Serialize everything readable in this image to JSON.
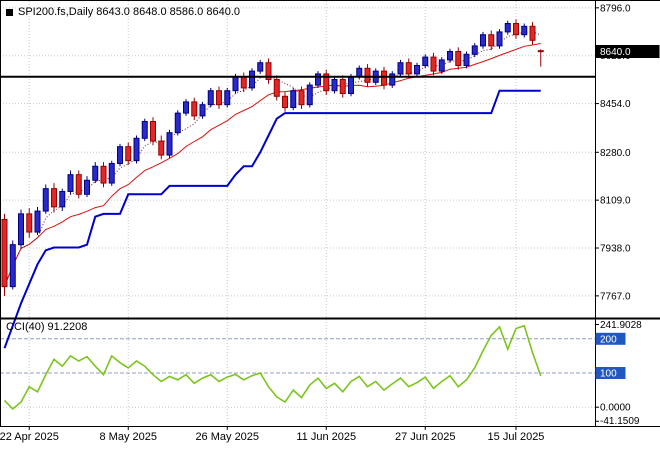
{
  "symbol_bar": {
    "marker_icon": "black-square",
    "text": "SPI200.fs,Daily 8643.0 8648.0 8586.0 8640.0"
  },
  "colors": {
    "bull_fill": "#2929cc",
    "bull_stroke": "#000080",
    "bear_fill": "#e02828",
    "bear_stroke": "#990000",
    "ma_fast": "#802020",
    "ma_slow": "#dd1111",
    "step_line": "#0000cd",
    "hline": "#000000",
    "cci_line": "#7cc41e",
    "grid": "#c9c9c9",
    "level_badge": "#2058c0",
    "price_badge_bg": "#000000",
    "price_badge_text": "#ffffff"
  },
  "chart_data": [
    {
      "type": "candlestick",
      "title": "SPI200.fs,Daily",
      "ohlc_display": {
        "open": "8643.0",
        "high": "8648.0",
        "low": "8586.0",
        "close": "8640.0"
      },
      "x_tick_labels": [
        "22 Apr 2025",
        "8 May 2025",
        "26 May 2025",
        "11 Jun 2025",
        "27 Jun 2025",
        "15 Jul 2025"
      ],
      "x_tick_indices": [
        3,
        15,
        27,
        39,
        51,
        62
      ],
      "y_ticks": [
        8796,
        8625,
        8454,
        8280,
        8109,
        7938,
        7767
      ],
      "y_tick_labels": [
        "8796.0",
        "8625.0",
        "8454.0",
        "8280.0",
        "8109.0",
        "7938.0",
        "7767.0"
      ],
      "ylim": [
        7688,
        8824
      ],
      "current_price": {
        "value": 8640,
        "label": "8640.0"
      },
      "candles": [
        [
          8040,
          8060,
          7767,
          7800
        ],
        [
          7800,
          7965,
          7790,
          7950
        ],
        [
          7950,
          8075,
          7935,
          8060
        ],
        [
          8060,
          8080,
          7975,
          7995
        ],
        [
          7995,
          8085,
          7985,
          8070
        ],
        [
          8070,
          8165,
          8060,
          8150
        ],
        [
          8150,
          8170,
          8065,
          8085
        ],
        [
          8085,
          8150,
          8070,
          8140
        ],
        [
          8140,
          8215,
          8130,
          8200
        ],
        [
          8200,
          8215,
          8115,
          8130
        ],
        [
          8130,
          8195,
          8120,
          8180
        ],
        [
          8180,
          8245,
          8170,
          8230
        ],
        [
          8230,
          8245,
          8155,
          8170
        ],
        [
          8170,
          8250,
          8160,
          8240
        ],
        [
          8240,
          8310,
          8230,
          8300
        ],
        [
          8300,
          8315,
          8235,
          8250
        ],
        [
          8250,
          8340,
          8240,
          8330
        ],
        [
          8330,
          8400,
          8320,
          8390
        ],
        [
          8390,
          8405,
          8305,
          8320
        ],
        [
          8320,
          8340,
          8255,
          8270
        ],
        [
          8270,
          8360,
          8260,
          8350
        ],
        [
          8350,
          8430,
          8340,
          8420
        ],
        [
          8420,
          8470,
          8410,
          8460
        ],
        [
          8460,
          8475,
          8395,
          8410
        ],
        [
          8410,
          8460,
          8400,
          8450
        ],
        [
          8450,
          8510,
          8440,
          8500
        ],
        [
          8500,
          8515,
          8435,
          8450
        ],
        [
          8450,
          8510,
          8440,
          8500
        ],
        [
          8500,
          8560,
          8490,
          8550
        ],
        [
          8550,
          8565,
          8495,
          8510
        ],
        [
          8510,
          8580,
          8500,
          8570
        ],
        [
          8570,
          8610,
          8560,
          8600
        ],
        [
          8600,
          8615,
          8525,
          8540
        ],
        [
          8540,
          8555,
          8465,
          8480
        ],
        [
          8480,
          8495,
          8425,
          8440
        ],
        [
          8440,
          8510,
          8430,
          8500
        ],
        [
          8500,
          8515,
          8435,
          8450
        ],
        [
          8450,
          8530,
          8440,
          8520
        ],
        [
          8520,
          8570,
          8510,
          8560
        ],
        [
          8560,
          8575,
          8485,
          8500
        ],
        [
          8500,
          8550,
          8490,
          8540
        ],
        [
          8540,
          8555,
          8475,
          8490
        ],
        [
          8490,
          8560,
          8480,
          8550
        ],
        [
          8550,
          8590,
          8540,
          8580
        ],
        [
          8580,
          8595,
          8515,
          8530
        ],
        [
          8530,
          8580,
          8520,
          8570
        ],
        [
          8570,
          8585,
          8505,
          8520
        ],
        [
          8520,
          8570,
          8510,
          8560
        ],
        [
          8560,
          8610,
          8550,
          8600
        ],
        [
          8600,
          8615,
          8545,
          8560
        ],
        [
          8560,
          8600,
          8550,
          8590
        ],
        [
          8590,
          8630,
          8580,
          8620
        ],
        [
          8620,
          8635,
          8555,
          8570
        ],
        [
          8570,
          8620,
          8560,
          8610
        ],
        [
          8610,
          8650,
          8600,
          8640
        ],
        [
          8640,
          8655,
          8575,
          8590
        ],
        [
          8590,
          8640,
          8580,
          8630
        ],
        [
          8630,
          8670,
          8620,
          8660
        ],
        [
          8660,
          8710,
          8650,
          8700
        ],
        [
          8700,
          8715,
          8645,
          8660
        ],
        [
          8660,
          8720,
          8650,
          8710
        ],
        [
          8710,
          8750,
          8700,
          8740
        ],
        [
          8740,
          8755,
          8685,
          8700
        ],
        [
          8700,
          8740,
          8690,
          8730
        ],
        [
          8730,
          8745,
          8665,
          8680
        ],
        [
          8643,
          8648,
          8586,
          8640
        ]
      ],
      "overlays": {
        "ma_fast": {
          "type": "sma",
          "period": 5,
          "style": "dotted"
        },
        "ma_slow": {
          "type": "sma",
          "period": 13,
          "style": "solid"
        },
        "step_line": {
          "values": [
            7580,
            7660,
            7740,
            7810,
            7880,
            7930,
            7940,
            7940,
            7940,
            7940,
            7950,
            8050,
            8060,
            8060,
            8060,
            8130,
            8130,
            8130,
            8130,
            8130,
            8160,
            8160,
            8160,
            8160,
            8160,
            8160,
            8160,
            8160,
            8200,
            8230,
            8230,
            8280,
            8340,
            8400,
            8420,
            8420,
            8420,
            8420,
            8420,
            8420,
            8420,
            8420,
            8420,
            8420,
            8420,
            8420,
            8420,
            8420,
            8420,
            8420,
            8420,
            8420,
            8420,
            8420,
            8420,
            8420,
            8420,
            8420,
            8420,
            8420,
            8500,
            8500,
            8500,
            8500,
            8500,
            8500
          ]
        },
        "hline": {
          "value": 8550
        }
      }
    },
    {
      "type": "line",
      "title": "CCI(40)",
      "current_value": "91.2208",
      "label_text": "CCI(40) 91.2208",
      "ylim": [
        -55,
        255
      ],
      "levels": [
        200,
        100,
        0
      ],
      "y_axis": [
        {
          "value": 241.9028,
          "label": "241.9028",
          "badge": false
        },
        {
          "value": 200,
          "label": "200",
          "badge": true
        },
        {
          "value": 100,
          "label": "100",
          "badge": true
        },
        {
          "value": 0,
          "label": "0.0000",
          "badge": false
        },
        {
          "value": -41.1509,
          "label": "-41.1509",
          "badge": false
        }
      ],
      "values": [
        20,
        -5,
        15,
        60,
        45,
        95,
        140,
        120,
        150,
        135,
        148,
        120,
        95,
        150,
        130,
        115,
        135,
        120,
        95,
        75,
        90,
        80,
        95,
        70,
        85,
        95,
        75,
        88,
        96,
        80,
        92,
        100,
        60,
        30,
        15,
        50,
        28,
        65,
        85,
        55,
        70,
        45,
        75,
        90,
        60,
        75,
        50,
        68,
        85,
        60,
        72,
        88,
        55,
        75,
        92,
        60,
        80,
        115,
        165,
        210,
        235,
        170,
        230,
        238,
        160,
        91.2208
      ]
    }
  ]
}
